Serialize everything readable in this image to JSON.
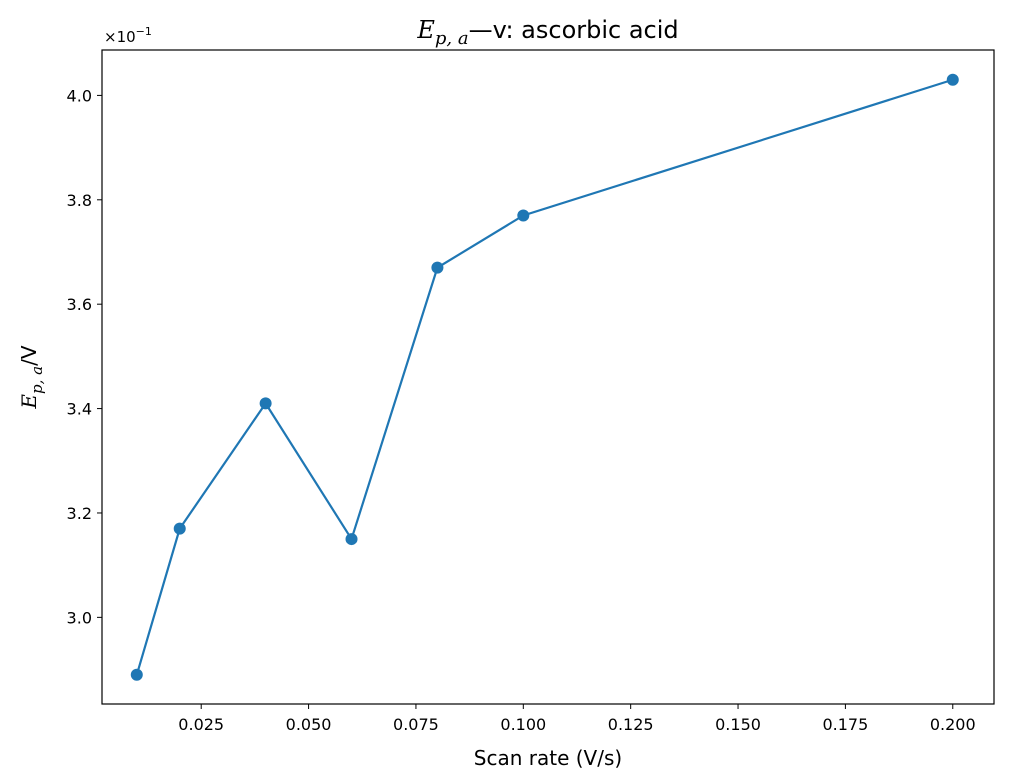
{
  "chart_data": {
    "type": "line",
    "title": {
      "symbol": "E",
      "subscript": "p, a",
      "rest": "—v: ascorbic acid"
    },
    "xlabel": "Scan rate (V/s)",
    "ylabel": {
      "symbol": "E",
      "subscript": "p, a",
      "rest": "/V"
    },
    "y_offset_label": {
      "base": "×10",
      "exponent": "−1"
    },
    "xlim": [
      0.0019,
      0.2096
    ],
    "ylim": [
      2.834,
      4.087
    ],
    "x_ticks": [
      0.025,
      0.05,
      0.075,
      0.1,
      0.125,
      0.15,
      0.175,
      0.2
    ],
    "x_tick_labels": [
      "0.025",
      "0.050",
      "0.075",
      "0.100",
      "0.125",
      "0.150",
      "0.175",
      "0.200"
    ],
    "y_ticks": [
      3.0,
      3.2,
      3.4,
      3.6,
      3.8,
      4.0
    ],
    "y_tick_labels": [
      "3.0",
      "3.2",
      "3.4",
      "3.6",
      "3.8",
      "4.0"
    ],
    "grid": false,
    "series": [
      {
        "color": "#1f77b4",
        "marker": "circle",
        "x": [
          0.01,
          0.02,
          0.04,
          0.06,
          0.08,
          0.1,
          0.2
        ],
        "y": [
          2.89,
          3.17,
          3.41,
          3.15,
          3.67,
          3.77,
          4.03
        ]
      }
    ]
  }
}
